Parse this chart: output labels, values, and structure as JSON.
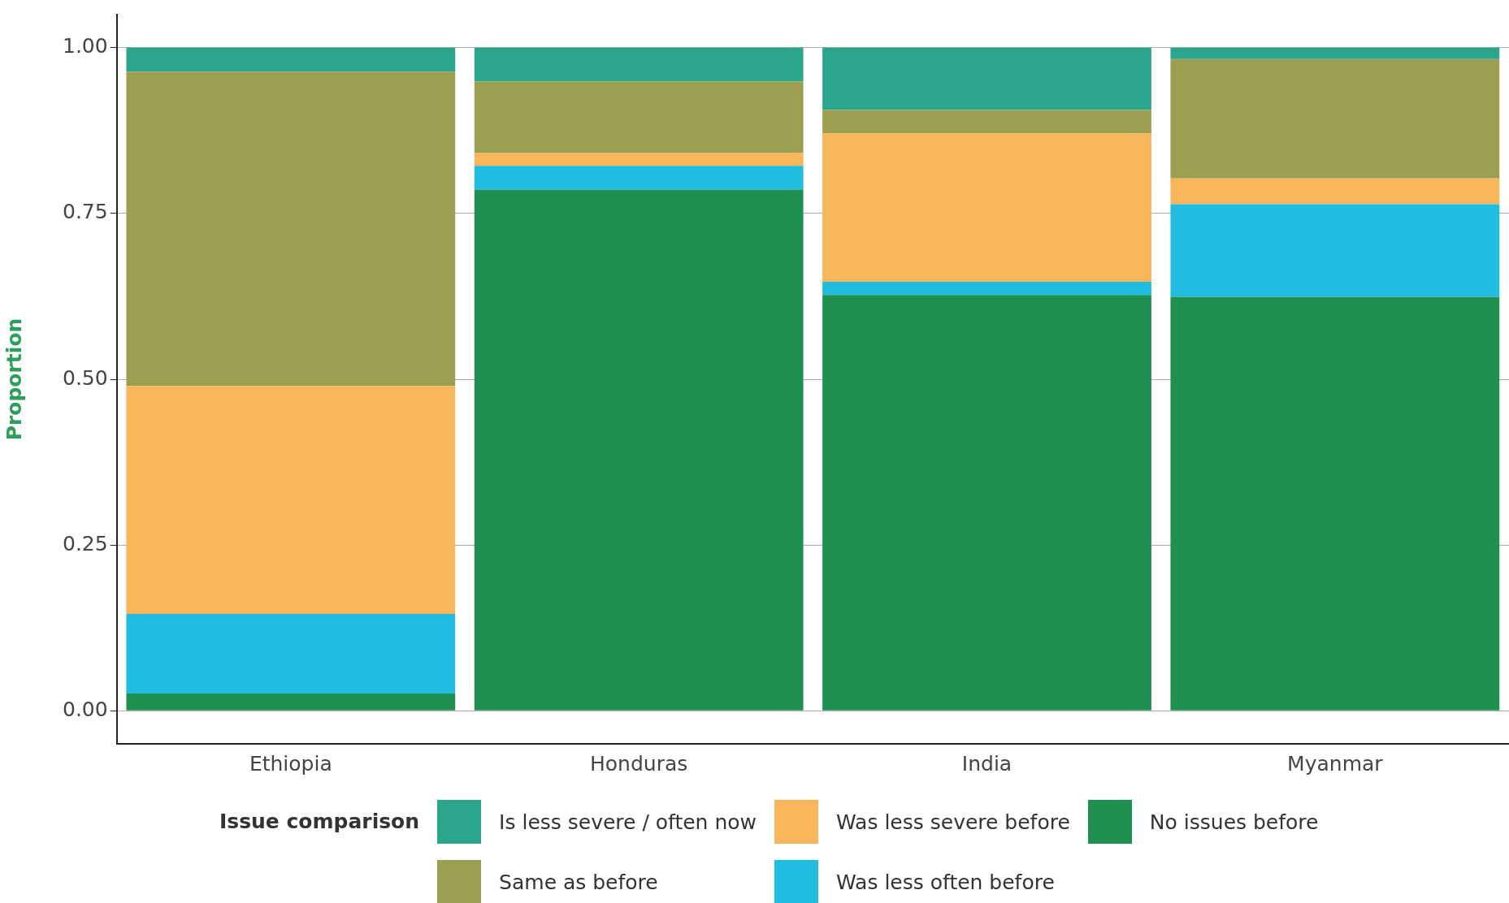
{
  "chart_data": {
    "type": "bar",
    "stacked": true,
    "ylabel": "Proportion",
    "legend_title": "Issue comparison",
    "legend": "bottom",
    "grid": "y",
    "categories": [
      "Ethiopia",
      "Honduras",
      "India",
      "Myanmar"
    ],
    "ylim": [
      -0.05,
      1.05
    ],
    "yticks": [
      {
        "value": 0,
        "label": "0.00"
      },
      {
        "value": 0.25,
        "label": "0.25"
      },
      {
        "value": 0.5,
        "label": "0.50"
      },
      {
        "value": 0.75,
        "label": "0.75"
      },
      {
        "value": 1,
        "label": "1.00"
      }
    ],
    "series": [
      {
        "name": "No issues before",
        "color": "#1f8f52",
        "values": [
          0.026,
          0.786,
          0.627,
          0.624
        ]
      },
      {
        "name": "Was less often before",
        "color": "#20bde0",
        "values": [
          0.12,
          0.036,
          0.02,
          0.14
        ]
      },
      {
        "name": "Was less severe before",
        "color": "#f8b55a",
        "values": [
          0.344,
          0.019,
          0.224,
          0.039
        ]
      },
      {
        "name": "Same as before",
        "color": "#9c9e50",
        "values": [
          0.474,
          0.108,
          0.035,
          0.18
        ]
      },
      {
        "name": "Is less severe / often now",
        "color": "#2ca58d",
        "values": [
          0.036,
          0.051,
          0.094,
          0.017
        ]
      }
    ]
  }
}
